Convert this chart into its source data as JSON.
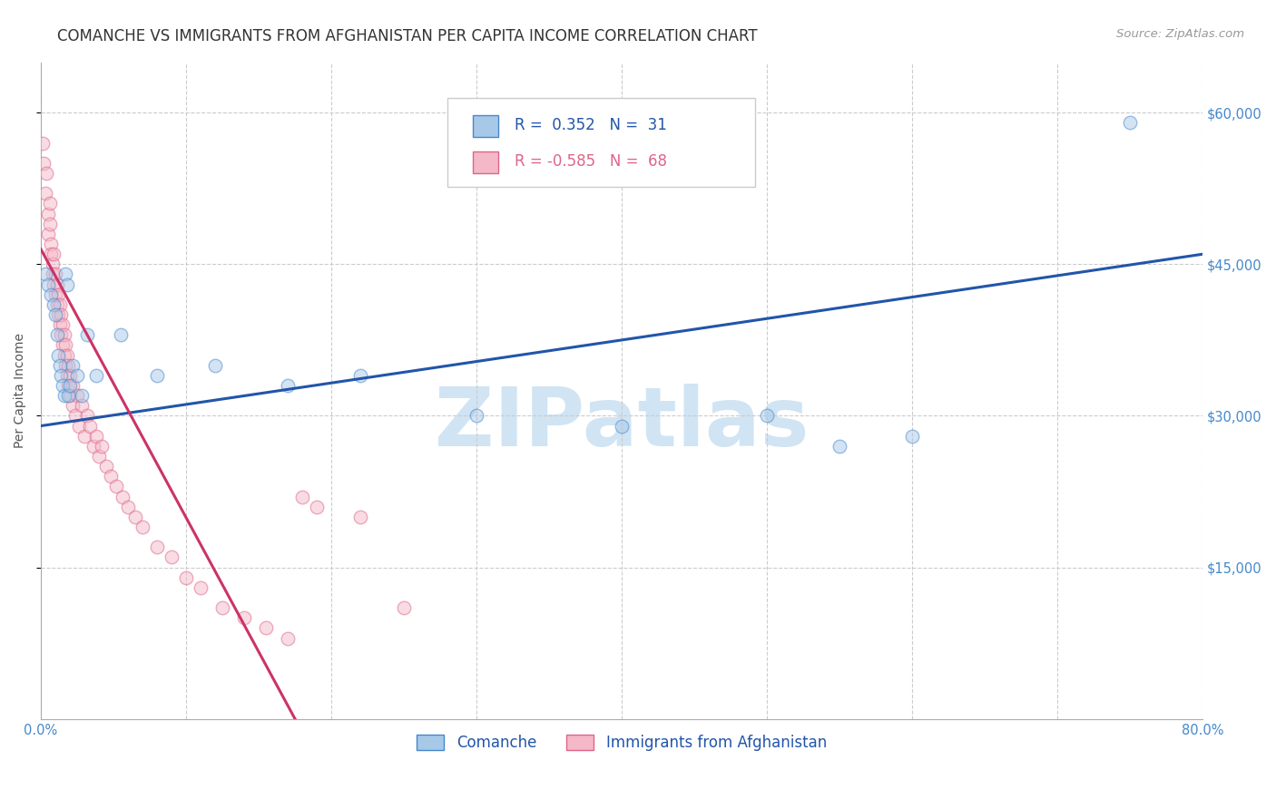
{
  "title": "COMANCHE VS IMMIGRANTS FROM AFGHANISTAN PER CAPITA INCOME CORRELATION CHART",
  "source": "Source: ZipAtlas.com",
  "ylabel": "Per Capita Income",
  "ylim": [
    0,
    65000
  ],
  "xlim": [
    0.0,
    0.8
  ],
  "ytick_vals": [
    15000,
    30000,
    45000,
    60000
  ],
  "ytick_labels": [
    "$15,000",
    "$30,000",
    "$45,000",
    "$60,000"
  ],
  "xtick_vals": [
    0.0,
    0.1,
    0.2,
    0.3,
    0.4,
    0.5,
    0.6,
    0.7,
    0.8
  ],
  "xtick_labels": [
    "0.0%",
    "",
    "",
    "",
    "",
    "",
    "",
    "",
    "80.0%"
  ],
  "legend_blue_r_val": "0.352",
  "legend_blue_n_val": "31",
  "legend_pink_r_val": "-0.585",
  "legend_pink_n_val": "68",
  "blue_fill_color": "#a8c8e8",
  "pink_fill_color": "#f4b8c8",
  "blue_edge_color": "#4488cc",
  "pink_edge_color": "#dd6688",
  "blue_line_color": "#2255aa",
  "pink_line_color": "#cc3366",
  "tick_color": "#4488cc",
  "watermark": "ZIPatlas",
  "watermark_color": "#d0e4f4",
  "label_blue": "Comanche",
  "label_pink": "Immigrants from Afghanistan",
  "blue_scatter_x": [
    0.003,
    0.005,
    0.007,
    0.009,
    0.01,
    0.011,
    0.012,
    0.013,
    0.014,
    0.015,
    0.016,
    0.017,
    0.018,
    0.019,
    0.02,
    0.022,
    0.025,
    0.028,
    0.032,
    0.038,
    0.055,
    0.08,
    0.12,
    0.17,
    0.22,
    0.3,
    0.4,
    0.5,
    0.55,
    0.6,
    0.75
  ],
  "blue_scatter_y": [
    44000,
    43000,
    42000,
    41000,
    40000,
    38000,
    36000,
    35000,
    34000,
    33000,
    32000,
    44000,
    43000,
    32000,
    33000,
    35000,
    34000,
    32000,
    38000,
    34000,
    38000,
    34000,
    35000,
    33000,
    34000,
    30000,
    29000,
    30000,
    27000,
    28000,
    59000
  ],
  "pink_scatter_x": [
    0.001,
    0.002,
    0.003,
    0.004,
    0.005,
    0.005,
    0.006,
    0.006,
    0.007,
    0.007,
    0.008,
    0.008,
    0.009,
    0.009,
    0.01,
    0.01,
    0.011,
    0.011,
    0.012,
    0.012,
    0.013,
    0.013,
    0.014,
    0.014,
    0.015,
    0.015,
    0.016,
    0.016,
    0.017,
    0.017,
    0.018,
    0.018,
    0.019,
    0.019,
    0.02,
    0.02,
    0.022,
    0.022,
    0.024,
    0.025,
    0.026,
    0.028,
    0.03,
    0.032,
    0.034,
    0.036,
    0.038,
    0.04,
    0.042,
    0.045,
    0.048,
    0.052,
    0.056,
    0.06,
    0.065,
    0.07,
    0.08,
    0.09,
    0.1,
    0.11,
    0.125,
    0.14,
    0.155,
    0.17,
    0.18,
    0.19,
    0.22,
    0.25
  ],
  "pink_scatter_y": [
    57000,
    55000,
    52000,
    54000,
    50000,
    48000,
    51000,
    49000,
    47000,
    46000,
    45000,
    44000,
    46000,
    43000,
    44000,
    42000,
    43000,
    41000,
    42000,
    40000,
    41000,
    39000,
    40000,
    38000,
    39000,
    37000,
    38000,
    36000,
    37000,
    35000,
    36000,
    34000,
    35000,
    33000,
    34000,
    32000,
    33000,
    31000,
    30000,
    32000,
    29000,
    31000,
    28000,
    30000,
    29000,
    27000,
    28000,
    26000,
    27000,
    25000,
    24000,
    23000,
    22000,
    21000,
    20000,
    19000,
    17000,
    16000,
    14000,
    13000,
    11000,
    10000,
    9000,
    8000,
    22000,
    21000,
    20000,
    11000
  ],
  "blue_trend_x": [
    0.0,
    0.8
  ],
  "blue_trend_y": [
    29000,
    46000
  ],
  "pink_trend_x": [
    0.0,
    0.175
  ],
  "pink_trend_y": [
    46500,
    0
  ],
  "title_fontsize": 12,
  "source_fontsize": 9.5,
  "ylabel_fontsize": 10,
  "tick_fontsize": 10.5,
  "legend_fontsize": 12,
  "watermark_fontsize": 65,
  "scatter_size": 110,
  "scatter_alpha": 0.5
}
